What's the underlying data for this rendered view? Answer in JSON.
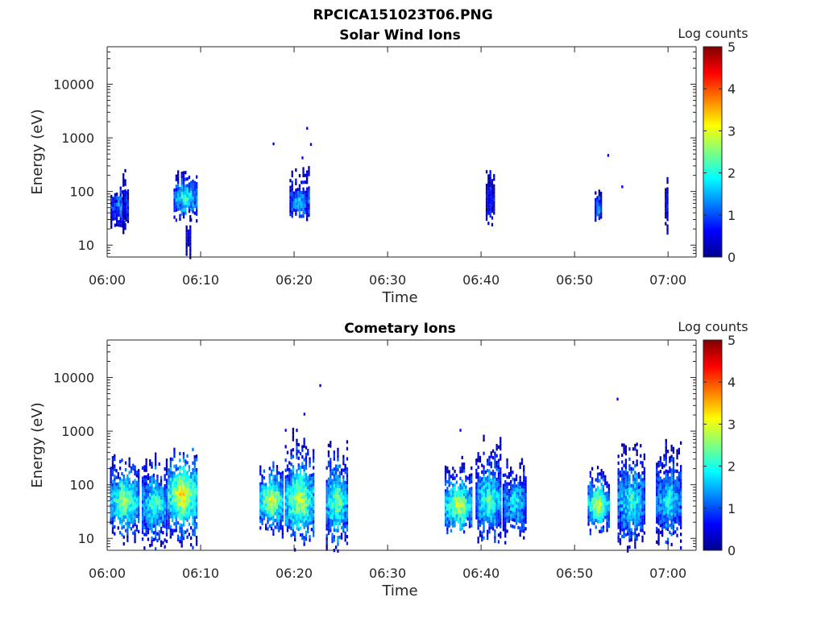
{
  "figure_title": "RPCICA151023T06.PNG",
  "colorbar_label": "Log counts",
  "colorbar_ticks": [
    "0",
    "1",
    "2",
    "3",
    "4",
    "5"
  ],
  "colormap": "jet",
  "chart_data": [
    {
      "type": "heatmap",
      "title": "Solar Wind Ions",
      "xlabel": "Time",
      "ylabel": "Energy (eV)",
      "yscale": "log",
      "x_ticks": [
        "06:00",
        "06:10",
        "06:20",
        "06:30",
        "06:40",
        "06:50",
        "07:00"
      ],
      "xlim_minutes": [
        0,
        63
      ],
      "y_ticks": [
        "10",
        "100",
        "1000",
        "10000"
      ],
      "ylim": [
        6,
        50000
      ],
      "clim": [
        0,
        5
      ],
      "events": [
        {
          "t": 1.3,
          "w": 1.9,
          "emin": 22,
          "emax": 130,
          "peak": 1.4,
          "emid": 55
        },
        {
          "t": 1.8,
          "w": 0.3,
          "emin": 12,
          "emax": 270,
          "peak": 0.6,
          "emid": 60
        },
        {
          "t": 8.3,
          "w": 2.4,
          "emin": 25,
          "emax": 280,
          "peak": 2.2,
          "emid": 80
        },
        {
          "t": 8.6,
          "w": 0.4,
          "emin": 6,
          "emax": 45,
          "peak": 0.5,
          "emid": 15
        },
        {
          "t": 20.5,
          "w": 2.0,
          "emin": 28,
          "emax": 300,
          "peak": 1.6,
          "emid": 70
        },
        {
          "t": 40.9,
          "w": 0.8,
          "emin": 18,
          "emax": 350,
          "peak": 0.8,
          "emid": 80
        },
        {
          "t": 52.5,
          "w": 0.7,
          "emin": 24,
          "emax": 130,
          "peak": 1.5,
          "emid": 50
        },
        {
          "t": 59.8,
          "w": 0.3,
          "emin": 12,
          "emax": 220,
          "peak": 0.6,
          "emid": 60
        }
      ],
      "outliers": [
        [
          17.7,
          820
        ],
        [
          21.3,
          1600
        ],
        [
          21.7,
          800
        ],
        [
          20.8,
          450
        ],
        [
          53.5,
          500
        ],
        [
          55.0,
          130
        ]
      ]
    },
    {
      "type": "heatmap",
      "title": "Cometary Ions",
      "xlabel": "Time",
      "ylabel": "Energy (eV)",
      "yscale": "log",
      "x_ticks": [
        "06:00",
        "06:10",
        "06:20",
        "06:30",
        "06:40",
        "06:50",
        "07:00"
      ],
      "xlim_minutes": [
        0,
        63
      ],
      "y_ticks": [
        "10",
        "100",
        "1000",
        "10000"
      ],
      "ylim": [
        6,
        50000
      ],
      "clim": [
        0,
        5
      ],
      "events": [
        {
          "t": 1.8,
          "w": 3.0,
          "emin": 8,
          "emax": 400,
          "peak": 2.8,
          "emid": 55
        },
        {
          "t": 5.0,
          "w": 2.6,
          "emin": 6,
          "emax": 400,
          "peak": 2.4,
          "emid": 45
        },
        {
          "t": 8.0,
          "w": 3.0,
          "emin": 6,
          "emax": 500,
          "peak": 3.4,
          "emid": 70
        },
        {
          "t": 17.5,
          "w": 2.4,
          "emin": 10,
          "emax": 300,
          "peak": 3.2,
          "emid": 55
        },
        {
          "t": 20.5,
          "w": 3.0,
          "emin": 6,
          "emax": 1200,
          "peak": 3.0,
          "emid": 55
        },
        {
          "t": 24.5,
          "w": 2.2,
          "emin": 6,
          "emax": 800,
          "peak": 2.6,
          "emid": 50
        },
        {
          "t": 37.5,
          "w": 2.8,
          "emin": 10,
          "emax": 350,
          "peak": 3.0,
          "emid": 45
        },
        {
          "t": 40.7,
          "w": 2.6,
          "emin": 8,
          "emax": 1000,
          "peak": 2.4,
          "emid": 55
        },
        {
          "t": 43.5,
          "w": 2.4,
          "emin": 8,
          "emax": 400,
          "peak": 2.0,
          "emid": 50
        },
        {
          "t": 52.5,
          "w": 2.2,
          "emin": 12,
          "emax": 250,
          "peak": 3.0,
          "emid": 45
        },
        {
          "t": 56.0,
          "w": 2.8,
          "emin": 6,
          "emax": 700,
          "peak": 2.2,
          "emid": 50
        },
        {
          "t": 60.0,
          "w": 2.6,
          "emin": 6,
          "emax": 800,
          "peak": 2.0,
          "emid": 55
        }
      ],
      "outliers": [
        [
          22.7,
          7500
        ],
        [
          21.0,
          2200
        ],
        [
          19.0,
          1100
        ],
        [
          37.7,
          1100
        ],
        [
          54.5,
          4200
        ]
      ]
    }
  ]
}
